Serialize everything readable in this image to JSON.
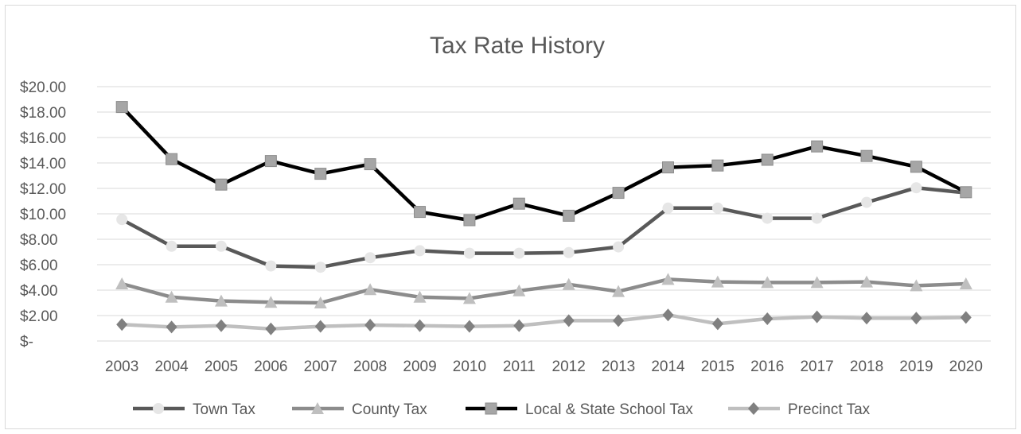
{
  "chart_data": {
    "type": "line",
    "title": "Tax Rate History",
    "xlabel": "",
    "ylabel": "",
    "ylim": [
      0,
      20
    ],
    "yticks": [
      "$-",
      "$2.00",
      "$4.00",
      "$6.00",
      "$8.00",
      "$10.00",
      "$12.00",
      "$14.00",
      "$16.00",
      "$18.00",
      "$20.00"
    ],
    "grid": true,
    "legend": "bottom",
    "categories": [
      "2003",
      "2004",
      "2005",
      "2006",
      "2007",
      "2008",
      "2009",
      "2010",
      "2011",
      "2012",
      "2013",
      "2014",
      "2015",
      "2016",
      "2017",
      "2018",
      "2019",
      "2020"
    ],
    "series": [
      {
        "name": "Town Tax",
        "color": "#595959",
        "marker": "circle",
        "marker_color": "#e6e6e6",
        "values": [
          9.55,
          7.45,
          7.45,
          5.9,
          5.8,
          6.55,
          7.1,
          6.9,
          6.9,
          6.95,
          7.4,
          10.45,
          10.45,
          9.65,
          9.65,
          10.9,
          12.05,
          11.65
        ]
      },
      {
        "name": "County Tax",
        "color": "#8c8c8c",
        "marker": "triangle",
        "marker_color": "#bfbfbf",
        "values": [
          4.5,
          3.45,
          3.15,
          3.05,
          3.0,
          4.05,
          3.45,
          3.35,
          3.95,
          4.45,
          3.9,
          4.85,
          4.65,
          4.6,
          4.6,
          4.65,
          4.35,
          4.5
        ]
      },
      {
        "name": "Local & State School Tax",
        "color": "#000000",
        "marker": "square",
        "marker_color": "#a6a6a6",
        "values": [
          18.4,
          14.3,
          12.3,
          14.15,
          13.15,
          13.9,
          10.15,
          9.5,
          10.8,
          9.85,
          11.65,
          13.65,
          13.8,
          14.25,
          15.3,
          14.55,
          13.7,
          11.7
        ]
      },
      {
        "name": "Precinct Tax",
        "color": "#bfbfbf",
        "marker": "diamond",
        "marker_color": "#808080",
        "values": [
          1.3,
          1.1,
          1.2,
          0.95,
          1.15,
          1.25,
          1.2,
          1.15,
          1.2,
          1.6,
          1.6,
          2.05,
          1.35,
          1.75,
          1.9,
          1.8,
          1.8,
          1.85
        ]
      }
    ]
  }
}
